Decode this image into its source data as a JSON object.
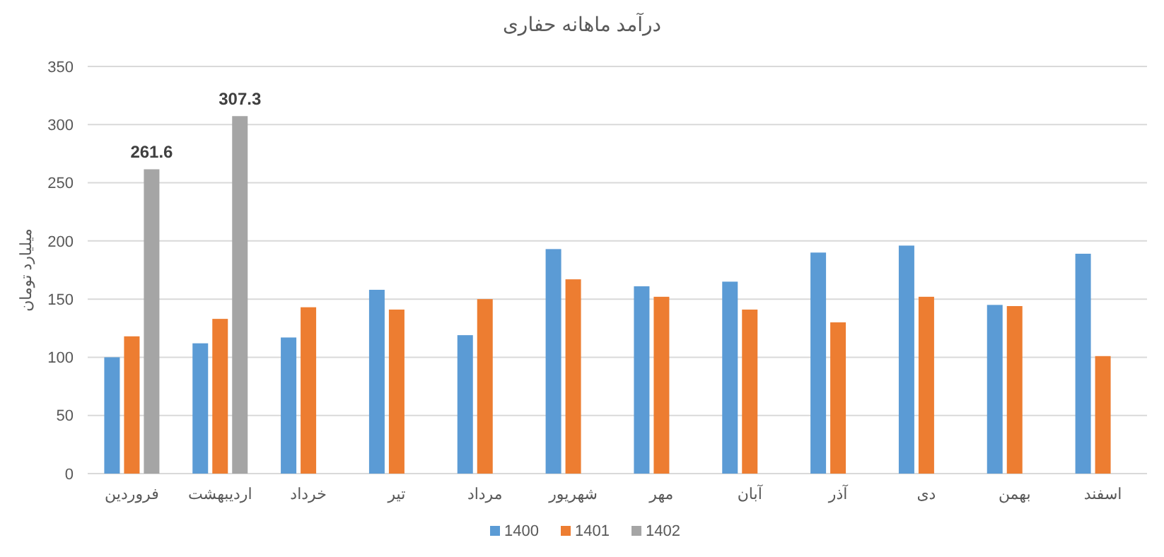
{
  "chart_data": {
    "type": "bar",
    "title": "درآمد ماهانه حفاری",
    "ylabel": "میلیارد تومان",
    "categories": [
      "فروردین",
      "اردیبهشت",
      "خرداد",
      "تیر",
      "مرداد",
      "شهریور",
      "مهر",
      "آبان",
      "آذر",
      "دی",
      "بهمن",
      "اسفند"
    ],
    "series": [
      {
        "name": "1400",
        "color": "#5b9bd5",
        "values": [
          100,
          112,
          117,
          158,
          119,
          193,
          161,
          165,
          190,
          196,
          145,
          189
        ]
      },
      {
        "name": "1401",
        "color": "#ed7d31",
        "values": [
          118,
          133,
          143,
          141,
          150,
          167,
          152,
          141,
          130,
          152,
          144,
          101
        ]
      },
      {
        "name": "1402",
        "color": "#a5a5a5",
        "values": [
          261.6,
          307.3,
          null,
          null,
          null,
          null,
          null,
          null,
          null,
          null,
          null,
          null
        ],
        "value_labels": [
          "261.6",
          "307.3",
          null,
          null,
          null,
          null,
          null,
          null,
          null,
          null,
          null,
          null
        ]
      }
    ],
    "ylim": [
      0,
      350
    ],
    "yticks": [
      0,
      50,
      100,
      150,
      200,
      250,
      300,
      350
    ],
    "grid": "y",
    "legend": "bottom"
  }
}
